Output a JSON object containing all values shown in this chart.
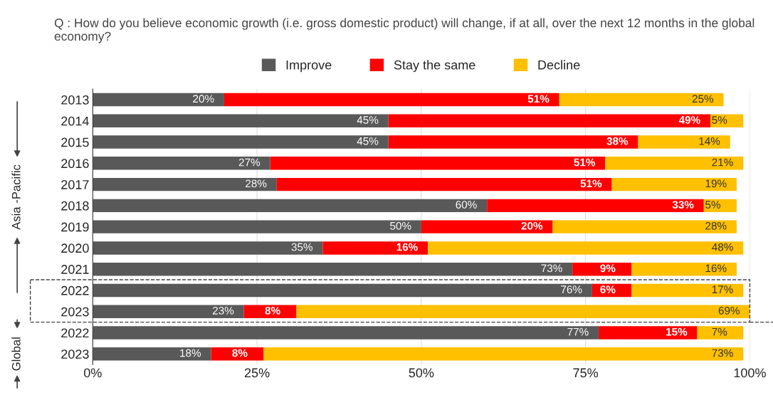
{
  "chart_data": {
    "type": "bar",
    "orientation": "horizontal",
    "stacked": true,
    "title": "Q : How do you believe economic growth (i.e. gross domestic product) will change, if at all, over the next 12 months in the global economy?",
    "categories": [
      "2013",
      "2014",
      "2015",
      "2016",
      "2017",
      "2018",
      "2019",
      "2020",
      "2021",
      "2022",
      "2023",
      "2022",
      "2023"
    ],
    "series": [
      {
        "name": "Improve",
        "color": "#595959",
        "values": [
          20,
          45,
          45,
          27,
          28,
          60,
          50,
          35,
          73,
          76,
          23,
          77,
          18
        ],
        "value_labels": [
          "20%",
          "45%",
          "45%",
          "27%",
          "28%",
          "60%",
          "50%",
          "35%",
          "73%",
          "76%",
          "23%",
          "77%",
          "18%"
        ]
      },
      {
        "name": "Stay the same",
        "color": "#ff0000",
        "values": [
          51,
          49,
          38,
          51,
          51,
          33,
          20,
          16,
          9,
          6,
          8,
          15,
          8
        ],
        "value_labels": [
          "51%",
          "49%",
          "38%",
          "51%",
          "51%",
          "33%",
          "20%",
          "16%",
          "9%",
          "6%",
          "8%",
          "15%",
          "8%"
        ]
      },
      {
        "name": "Decline",
        "color": "#ffc000",
        "values": [
          25,
          5,
          14,
          21,
          19,
          5,
          28,
          48,
          16,
          17,
          69,
          7,
          73
        ],
        "value_labels": [
          "25%",
          "5%",
          "14%",
          "21%",
          "19%",
          "5%",
          "28%",
          "48%",
          "16%",
          "17%",
          "69%",
          "7%",
          "73%"
        ]
      }
    ],
    "xlim": [
      0,
      100
    ],
    "xticks": [
      {
        "value": 0,
        "label": "0%"
      },
      {
        "value": 25,
        "label": "25%"
      },
      {
        "value": 50,
        "label": "50%"
      },
      {
        "value": 75,
        "label": "75%"
      },
      {
        "value": 100,
        "label": "100%"
      }
    ],
    "grid": "x",
    "legend": "top",
    "annotations": [
      "Asia -Pacific",
      "Global"
    ]
  }
}
